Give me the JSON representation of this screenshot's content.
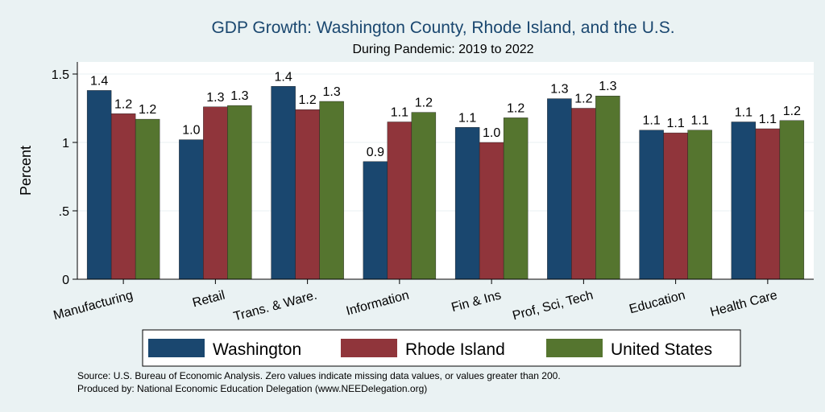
{
  "chart_data": {
    "type": "bar",
    "title": "GDP Growth: Washington County, Rhode Island, and the U.S.",
    "subtitle": "During Pandemic: 2019 to 2022",
    "ylabel": "Percent",
    "xlabel": "",
    "ylim": [
      0,
      1.6
    ],
    "yticks": [
      0,
      0.5,
      1,
      1.5
    ],
    "ytick_labels": [
      "0",
      ".5",
      "1",
      "1.5"
    ],
    "grid": true,
    "categories": [
      "Manufacturing",
      "Retail",
      "Trans. & Ware.",
      "Information",
      "Fin & Ins",
      "Prof, Sci, Tech",
      "Education",
      "Health Care"
    ],
    "series": [
      {
        "name": "Washington",
        "color": "#1a476f",
        "values": [
          1.38,
          1.02,
          1.41,
          0.86,
          1.11,
          1.32,
          1.09,
          1.15
        ],
        "labels": [
          "1.4",
          "1.0",
          "1.4",
          "0.9",
          "1.1",
          "1.3",
          "1.1",
          "1.1"
        ]
      },
      {
        "name": "Rhode Island",
        "color": "#90353b",
        "values": [
          1.21,
          1.26,
          1.24,
          1.15,
          1.0,
          1.25,
          1.07,
          1.1
        ],
        "labels": [
          "1.2",
          "1.3",
          "1.2",
          "1.1",
          "1.0",
          "1.2",
          "1.1",
          "1.1"
        ]
      },
      {
        "name": "United States",
        "color": "#55752f",
        "values": [
          1.17,
          1.27,
          1.3,
          1.22,
          1.18,
          1.34,
          1.09,
          1.16
        ],
        "labels": [
          "1.2",
          "1.3",
          "1.3",
          "1.2",
          "1.2",
          "1.3",
          "1.1",
          "1.2"
        ]
      }
    ],
    "legend_position": "bottom",
    "notes": [
      "Source: U.S. Bureau of Economic Analysis. Zero values indicate missing data values, or values greater than 200.",
      "Produced by: National Economic Education Delegation (www.NEEDelegation.org)"
    ]
  }
}
